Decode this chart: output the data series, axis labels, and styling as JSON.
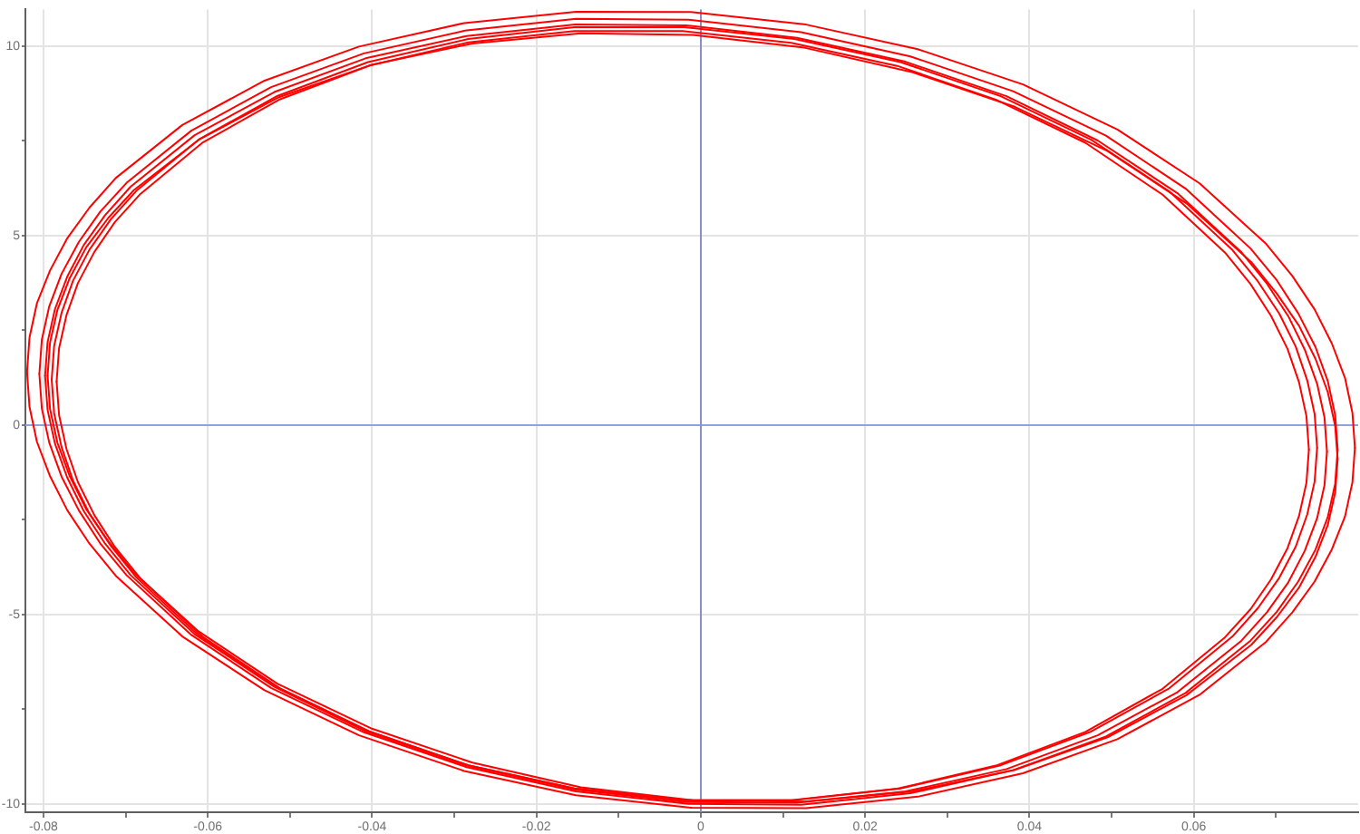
{
  "chart_data": {
    "type": "line",
    "xlim": [
      -0.0822,
      0.08
    ],
    "ylim": [
      -10.22,
      10.97
    ],
    "xticks": [
      -0.08,
      {
        "value": -0.07,
        "label": null
      },
      -0.06,
      {
        "value": -0.05,
        "label": null
      },
      -0.04,
      {
        "value": -0.03,
        "label": null
      },
      -0.02,
      {
        "value": -0.01,
        "label": null
      },
      0,
      {
        "value": 0.01,
        "label": null
      },
      0.02,
      {
        "value": 0.03,
        "label": null
      },
      0.04,
      {
        "value": 0.05,
        "label": null
      },
      0.06,
      {
        "value": 0.07,
        "label": null
      }
    ],
    "yticks": [
      -10,
      {
        "value": -7.5,
        "label": null
      },
      -5,
      {
        "value": -2.5,
        "label": null
      },
      0,
      {
        "value": 2.5,
        "label": null
      },
      5,
      {
        "value": 7.5,
        "label": null
      },
      10
    ],
    "grid": true,
    "ref_lines": [
      {
        "axis": "y",
        "value": 0,
        "color": "#8fa1e0"
      },
      {
        "axis": "x",
        "value": 0,
        "color": "#878fc6"
      }
    ],
    "series": [
      {
        "color": "#ff0000",
        "x": [
          -0.082,
          -0.0817,
          -0.0808,
          -0.0792,
          -0.0771,
          -0.0744,
          -0.0712,
          -0.0631,
          -0.0531,
          -0.0416,
          -0.0288,
          -0.0152,
          -0.0012,
          0.0128,
          0.0264,
          0.0392,
          0.0507,
          0.0607,
          0.0688,
          0.072,
          0.0747,
          0.0768,
          0.0784,
          0.0793,
          0.0796
        ],
        "values": [
          1.4,
          2.31,
          3.21,
          4.08,
          4.93,
          5.74,
          6.52,
          7.92,
          9.09,
          9.99,
          10.61,
          10.91,
          10.9,
          10.57,
          9.92,
          8.99,
          7.8,
          6.38,
          4.78,
          3.93,
          3.05,
          2.15,
          1.24,
          0.32,
          -0.6
        ]
      },
      {
        "color": "#ff0000",
        "x": [
          -0.082,
          -0.0817,
          -0.0808,
          -0.0792,
          -0.0771,
          -0.0744,
          -0.0712,
          -0.0631,
          -0.0531,
          -0.0416,
          -0.0288,
          -0.0152,
          -0.0012,
          0.0128,
          0.0264,
          0.0392,
          0.0507,
          0.0607,
          0.0688,
          0.072,
          0.0747,
          0.0768,
          0.0784,
          0.0793,
          0.0796
        ],
        "values": [
          1.4,
          0.48,
          -0.44,
          -1.35,
          -2.25,
          -3.13,
          -3.98,
          -5.58,
          -7.0,
          -8.19,
          -9.13,
          -9.77,
          -10.1,
          -10.11,
          -9.81,
          -9.19,
          -8.29,
          -7.12,
          -5.72,
          -4.94,
          -4.13,
          -3.28,
          -2.41,
          -1.51,
          -0.6
        ]
      },
      {
        "color": "#ff0000",
        "x": [
          -0.0805,
          -0.0802,
          -0.0793,
          -0.0778,
          -0.0757,
          -0.0731,
          -0.0699,
          -0.062,
          -0.0523,
          -0.041,
          -0.0285,
          -0.0152,
          -0.0015,
          0.0122,
          0.0255,
          0.038,
          0.0493,
          0.059,
          0.0669,
          0.0701,
          0.0727,
          0.0748,
          0.0763,
          0.0772,
          0.0775
        ],
        "values": [
          1.35,
          2.25,
          3.13,
          3.99,
          4.83,
          5.63,
          6.39,
          7.77,
          8.92,
          9.81,
          10.42,
          10.72,
          10.7,
          10.37,
          9.73,
          8.81,
          7.64,
          6.24,
          4.66,
          3.82,
          2.95,
          2.06,
          1.16,
          0.26,
          -0.65
        ]
      },
      {
        "color": "#ff0000",
        "x": [
          -0.0805,
          -0.0802,
          -0.0793,
          -0.0778,
          -0.0757,
          -0.0731,
          -0.0699,
          -0.062,
          -0.0523,
          -0.041,
          -0.0285,
          -0.0152,
          -0.0015,
          0.0122,
          0.0255,
          0.038,
          0.0493,
          0.059,
          0.0669,
          0.0701,
          0.0727,
          0.0748,
          0.0763,
          0.0772,
          0.0775
        ],
        "values": [
          1.35,
          0.44,
          -0.46,
          -1.36,
          -2.25,
          -3.12,
          -3.96,
          -5.54,
          -6.94,
          -8.11,
          -9.03,
          -9.67,
          -10.0,
          -10.02,
          -9.72,
          -9.11,
          -8.22,
          -7.07,
          -5.69,
          -4.93,
          -4.13,
          -3.29,
          -2.43,
          -1.55,
          -0.65
        ]
      },
      {
        "color": "#ff0000",
        "x": [
          -0.0798,
          -0.0795,
          -0.0786,
          -0.0771,
          -0.0751,
          -0.0725,
          -0.0694,
          -0.0616,
          -0.0519,
          -0.0408,
          -0.0285,
          -0.0153,
          -0.0018,
          0.0117,
          0.0249,
          0.0372,
          0.0483,
          0.058,
          0.0658,
          0.0689,
          0.0715,
          0.0735,
          0.075,
          0.0759,
          0.0762
        ],
        "values": [
          1.3,
          2.19,
          3.06,
          3.92,
          4.75,
          5.54,
          6.29,
          7.65,
          8.79,
          9.68,
          10.27,
          10.57,
          10.55,
          10.22,
          9.59,
          8.68,
          7.51,
          6.12,
          4.56,
          3.73,
          2.87,
          1.99,
          1.09,
          0.2,
          -0.7
        ]
      },
      {
        "color": "#ff0000",
        "x": [
          -0.0798,
          -0.0795,
          -0.0786,
          -0.0771,
          -0.0751,
          -0.0725,
          -0.0694,
          -0.0616,
          -0.0519,
          -0.0408,
          -0.0285,
          -0.0153,
          -0.0018,
          0.0117,
          0.0249,
          0.0372,
          0.0483,
          0.058,
          0.0658,
          0.0689,
          0.0715,
          0.0735,
          0.075,
          0.0759,
          0.0762
        ],
        "values": [
          1.3,
          0.4,
          -0.49,
          -1.39,
          -2.27,
          -3.13,
          -3.96,
          -5.52,
          -6.91,
          -8.08,
          -8.99,
          -9.62,
          -9.95,
          -9.97,
          -9.67,
          -9.08,
          -8.19,
          -7.05,
          -5.69,
          -4.94,
          -4.15,
          -3.32,
          -2.46,
          -1.59,
          -0.7
        ]
      },
      {
        "color": "#ff0000",
        "x": [
          -0.079,
          -0.0787,
          -0.0778,
          -0.0764,
          -0.0744,
          -0.0718,
          -0.0687,
          -0.061,
          -0.0515,
          -0.0405,
          -0.0283,
          -0.0154,
          -0.002,
          0.0114,
          0.0243,
          0.0365,
          0.0475,
          0.057,
          0.0647,
          0.0678,
          0.0704,
          0.0724,
          0.0738,
          0.0747,
          0.075
        ],
        "values": [
          1.2,
          2.09,
          2.96,
          3.81,
          4.63,
          5.43,
          6.18,
          7.55,
          8.69,
          9.58,
          10.19,
          10.5,
          10.5,
          10.19,
          9.58,
          8.68,
          7.53,
          6.17,
          4.62,
          3.79,
          2.94,
          2.07,
          1.18,
          0.29,
          -0.6
        ]
      },
      {
        "color": "#ff0000",
        "x": [
          -0.079,
          -0.0787,
          -0.0778,
          -0.0764,
          -0.0744,
          -0.0718,
          -0.0687,
          -0.061,
          -0.0515,
          -0.0405,
          -0.0283,
          -0.0154,
          -0.002,
          0.0114,
          0.0243,
          0.0365,
          0.0475,
          0.057,
          0.0647,
          0.0678,
          0.0704,
          0.0724,
          0.0738,
          0.0747,
          0.075
        ],
        "values": [
          1.2,
          0.31,
          -0.58,
          -1.47,
          -2.34,
          -3.19,
          -4.02,
          -5.57,
          -6.93,
          -8.08,
          -8.98,
          -9.59,
          -9.9,
          -9.9,
          -9.59,
          -8.98,
          -8.09,
          -6.95,
          -5.58,
          -4.83,
          -4.03,
          -3.21,
          -2.36,
          -1.49,
          -0.6
        ]
      },
      {
        "color": "#ff0000",
        "x": [
          -0.0784,
          -0.0781,
          -0.0772,
          -0.0758,
          -0.0738,
          -0.0713,
          -0.0682,
          -0.0606,
          -0.0512,
          -0.0403,
          -0.0283,
          -0.0154,
          -0.0022,
          0.011,
          0.0239,
          0.0359,
          0.0468,
          0.0562,
          0.0638,
          0.0669,
          0.0694,
          0.0714,
          0.0728,
          0.0737,
          0.074
        ],
        "values": [
          1.15,
          2.03,
          2.9,
          3.75,
          4.57,
          5.36,
          6.1,
          7.46,
          8.6,
          9.49,
          10.1,
          10.4,
          10.4,
          10.09,
          9.48,
          8.59,
          7.45,
          6.08,
          4.55,
          3.72,
          2.88,
          2.01,
          1.13,
          0.24,
          -0.65
        ]
      },
      {
        "color": "#ff0000",
        "x": [
          -0.0784,
          -0.0781,
          -0.0772,
          -0.0758,
          -0.0738,
          -0.0713,
          -0.0682,
          -0.0606,
          -0.0512,
          -0.0403,
          -0.0283,
          -0.0154,
          -0.0022,
          0.011,
          0.0239,
          0.0359,
          0.0468,
          0.0562,
          0.0638,
          0.0669,
          0.0694,
          0.0714,
          0.0728,
          0.0737,
          0.074
        ],
        "values": [
          1.15,
          0.26,
          -0.63,
          -1.51,
          -2.38,
          -3.22,
          -4.05,
          -5.59,
          -6.95,
          -8.09,
          -8.98,
          -9.59,
          -9.9,
          -9.9,
          -9.6,
          -8.99,
          -8.1,
          -6.96,
          -5.6,
          -4.86,
          -4.07,
          -3.25,
          -2.4,
          -1.53,
          -0.65
        ]
      },
      {
        "color": "#ff0000",
        "x": [
          -0.0795,
          -0.0792,
          -0.0783,
          -0.0768,
          -0.0748,
          -0.0721,
          -0.069,
          -0.0611,
          -0.0515,
          -0.0402,
          -0.0278,
          -0.0146,
          -0.001,
          0.0126,
          0.0258,
          0.0382,
          0.0495,
          0.0591,
          0.067,
          0.0701,
          0.0728,
          0.0748,
          0.0763,
          0.0772,
          0.0775
        ],
        "values": [
          1.3,
          2.18,
          3.04,
          3.88,
          4.69,
          5.47,
          6.2,
          7.53,
          8.64,
          9.5,
          10.07,
          10.34,
          10.3,
          9.96,
          9.31,
          8.4,
          7.23,
          5.85,
          4.3,
          3.47,
          2.62,
          1.75,
          0.87,
          -0.02,
          -0.9
        ]
      },
      {
        "color": "#ff0000",
        "x": [
          -0.0795,
          -0.0792,
          -0.0783,
          -0.0768,
          -0.0748,
          -0.0721,
          -0.069,
          -0.0611,
          -0.0515,
          -0.0402,
          -0.0278,
          -0.0146,
          -0.001,
          0.0126,
          0.0258,
          0.0382,
          0.0495,
          0.0591,
          0.067,
          0.0701,
          0.0728,
          0.0748,
          0.0763,
          0.0772,
          0.0775
        ],
        "values": [
          1.3,
          0.42,
          -0.47,
          -1.35,
          -2.22,
          -3.07,
          -3.9,
          -5.45,
          -6.83,
          -8.0,
          -8.91,
          -9.56,
          -9.9,
          -9.94,
          -9.67,
          -9.1,
          -8.24,
          -7.13,
          -5.8,
          -5.07,
          -4.29,
          -3.48,
          -2.64,
          -1.78,
          -0.9
        ]
      }
    ]
  }
}
